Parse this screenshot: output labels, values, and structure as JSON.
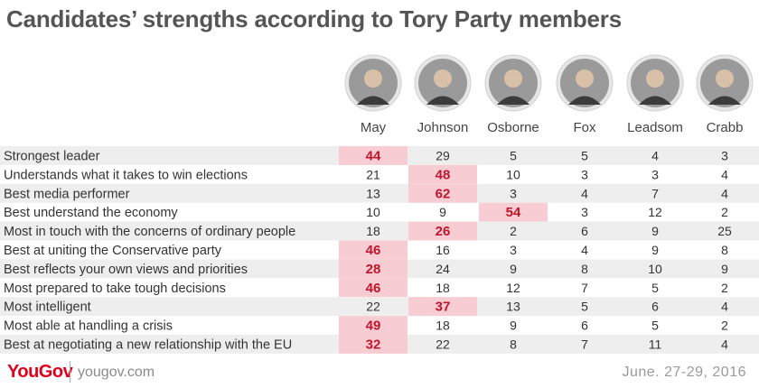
{
  "title": "Candidates’ strengths according to Tory Party members",
  "chart_data": {
    "type": "table",
    "columns": [
      "May",
      "Johnson",
      "Osborne",
      "Fox",
      "Leadsom",
      "Crabb"
    ],
    "rows": [
      {
        "label": "Strongest leader",
        "values": [
          44,
          29,
          5,
          5,
          4,
          3
        ],
        "highlight": 0
      },
      {
        "label": "Understands what it takes to win elections",
        "values": [
          21,
          48,
          10,
          3,
          3,
          4
        ],
        "highlight": 1
      },
      {
        "label": "Best media performer",
        "values": [
          13,
          62,
          3,
          4,
          7,
          4
        ],
        "highlight": 1
      },
      {
        "label": "Best understand the economy",
        "values": [
          10,
          9,
          54,
          3,
          12,
          2
        ],
        "highlight": 2
      },
      {
        "label": "Most in touch with the concerns of ordinary people",
        "values": [
          18,
          26,
          2,
          6,
          9,
          25
        ],
        "highlight": 1
      },
      {
        "label": "Best at uniting the Conservative party",
        "values": [
          46,
          16,
          3,
          4,
          9,
          8
        ],
        "highlight": 0
      },
      {
        "label": "Best reflects your own views and priorities",
        "values": [
          28,
          24,
          9,
          8,
          10,
          9
        ],
        "highlight": 0
      },
      {
        "label": "Most prepared to take tough decisions",
        "values": [
          46,
          18,
          12,
          7,
          5,
          2
        ],
        "highlight": 0
      },
      {
        "label": "Most intelligent",
        "values": [
          22,
          37,
          13,
          5,
          6,
          4
        ],
        "highlight": 1
      },
      {
        "label": "Most able at handling a crisis",
        "values": [
          49,
          18,
          9,
          6,
          5,
          2
        ],
        "highlight": 0
      },
      {
        "label": "Best at negotiating a new relationship with the EU",
        "values": [
          32,
          22,
          8,
          7,
          11,
          4
        ],
        "highlight": 0
      }
    ],
    "colors": {
      "highlight_bg": "#f7cdd3",
      "highlight_text": "#c0152b",
      "stripe": "#eeeeee",
      "text": "#333333"
    }
  },
  "footer": {
    "brand_you": "You",
    "brand_gov": "Gov",
    "url": "yougov.com",
    "date": "June. 27-29, 2016"
  }
}
